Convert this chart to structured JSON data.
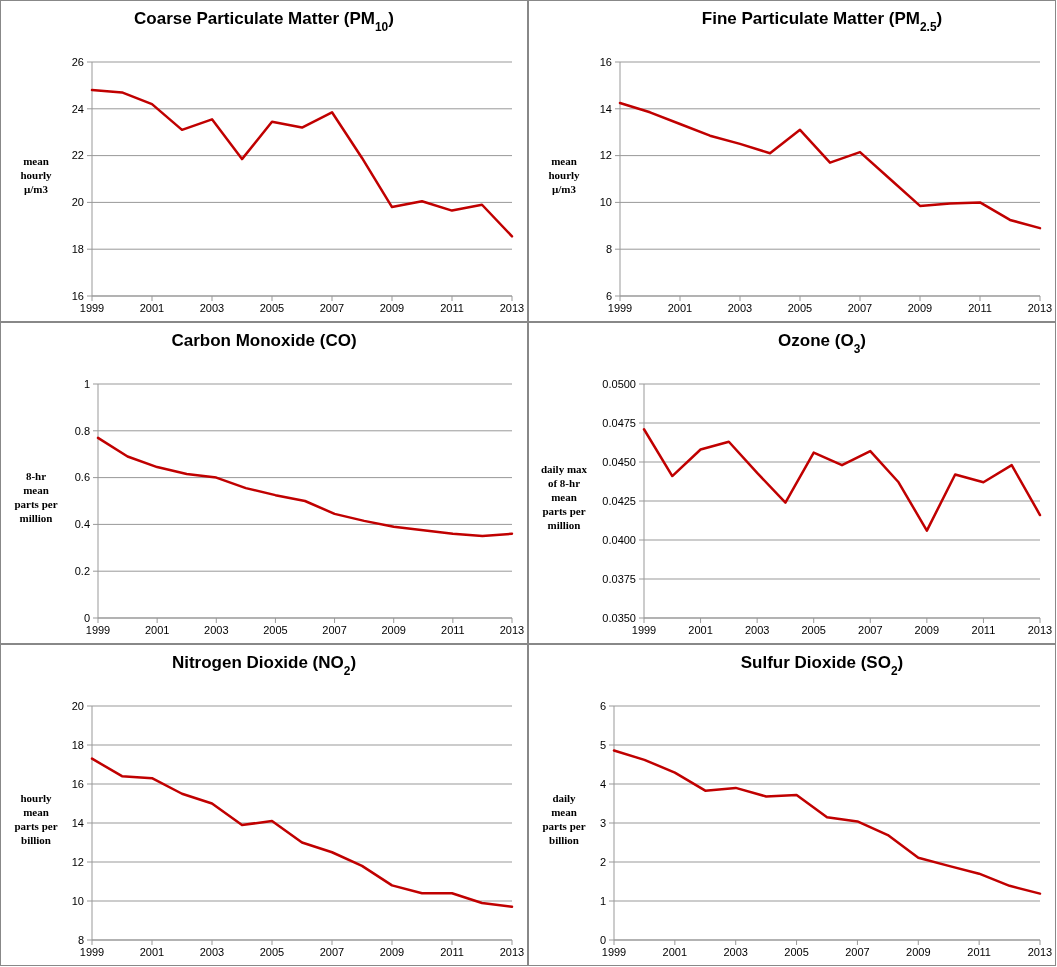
{
  "chart_data": [
    {
      "type": "line",
      "title": "Coarse Particulate Matter (PM$_{10}$)",
      "ylabel": "mean\nhourly\nµ/m3",
      "x": [
        1999,
        2000,
        2001,
        2002,
        2003,
        2004,
        2005,
        2006,
        2007,
        2008,
        2009,
        2010,
        2011,
        2012,
        2013
      ],
      "xlim": [
        1999,
        2013
      ],
      "xticks": [
        1999,
        2001,
        2003,
        2005,
        2007,
        2009,
        2011,
        2013
      ],
      "ylim": [
        16,
        26
      ],
      "yticks": [
        16,
        18,
        20,
        22,
        24,
        26
      ],
      "grid": "y",
      "marker": "none",
      "line_style": "solid",
      "series": [
        {
          "color": "#c00000",
          "values": [
            24.8,
            24.7,
            24.2,
            23.1,
            23.55,
            21.85,
            23.45,
            23.2,
            23.85,
            21.9,
            19.8,
            20.05,
            19.65,
            19.9,
            18.55
          ]
        }
      ]
    },
    {
      "type": "line",
      "title": "Fine Particulate Matter (PM$_{2.5}$)",
      "ylabel": "mean\nhourly\nµ/m3",
      "x": [
        1999,
        2000,
        2001,
        2002,
        2003,
        2004,
        2005,
        2006,
        2007,
        2008,
        2009,
        2010,
        2011,
        2012,
        2013
      ],
      "xlim": [
        1999,
        2013
      ],
      "xticks": [
        1999,
        2001,
        2003,
        2005,
        2007,
        2009,
        2011,
        2013
      ],
      "ylim": [
        6,
        16
      ],
      "yticks": [
        6,
        8,
        10,
        12,
        14,
        16
      ],
      "grid": "y",
      "marker": "none",
      "line_style": "solid",
      "series": [
        {
          "color": "#c00000",
          "values": [
            14.25,
            13.85,
            13.35,
            12.85,
            12.5,
            12.1,
            13.1,
            11.7,
            12.15,
            11.0,
            9.85,
            9.95,
            10.0,
            9.25,
            8.9
          ]
        }
      ]
    },
    {
      "type": "line",
      "title": "Carbon Monoxide (CO)",
      "ylabel": "8-hr\nmean\nparts per\nmillion",
      "x": [
        1999,
        2000,
        2001,
        2002,
        2003,
        2004,
        2005,
        2006,
        2007,
        2008,
        2009,
        2010,
        2011,
        2012,
        2013
      ],
      "xlim": [
        1999,
        2013
      ],
      "xticks": [
        1999,
        2001,
        2003,
        2005,
        2007,
        2009,
        2011,
        2013
      ],
      "ylim": [
        0,
        1
      ],
      "yticks": [
        0,
        0.2,
        0.4,
        0.6,
        0.8,
        1
      ],
      "grid": "y",
      "marker": "none",
      "line_style": "solid",
      "series": [
        {
          "color": "#c00000",
          "values": [
            0.77,
            0.69,
            0.645,
            0.615,
            0.6,
            0.555,
            0.525,
            0.5,
            0.445,
            0.415,
            0.39,
            0.375,
            0.36,
            0.35,
            0.36
          ]
        }
      ]
    },
    {
      "type": "line",
      "title": "Ozone (O$_{3}$)",
      "ylabel": "daily max\nof 8-hr\nmean\nparts per\nmillion",
      "x": [
        1999,
        2000,
        2001,
        2002,
        2003,
        2004,
        2005,
        2006,
        2007,
        2008,
        2009,
        2010,
        2011,
        2012,
        2013
      ],
      "xlim": [
        1999,
        2013
      ],
      "xticks": [
        1999,
        2001,
        2003,
        2005,
        2007,
        2009,
        2011,
        2013
      ],
      "ylim": [
        0.035,
        0.05
      ],
      "yticks": [
        {
          "value": 0.035,
          "label": "0.0350"
        },
        {
          "value": 0.0375,
          "label": "0.0375"
        },
        {
          "value": 0.04,
          "label": "0.0400"
        },
        {
          "value": 0.0425,
          "label": "0.0425"
        },
        {
          "value": 0.045,
          "label": "0.0450"
        },
        {
          "value": 0.0475,
          "label": "0.0475"
        },
        {
          "value": 0.05,
          "label": "0.0500"
        }
      ],
      "grid": "y",
      "marker": "none",
      "line_style": "solid",
      "series": [
        {
          "color": "#c00000",
          "values": [
            0.0471,
            0.0441,
            0.0458,
            0.0463,
            0.0443,
            0.0424,
            0.0456,
            0.0448,
            0.0457,
            0.0437,
            0.0406,
            0.0442,
            0.0437,
            0.0448,
            0.0416
          ]
        }
      ]
    },
    {
      "type": "line",
      "title": "Nitrogen Dioxide (NO$_{2}$)",
      "ylabel": "hourly\nmean\nparts per\nbillion",
      "x": [
        1999,
        2000,
        2001,
        2002,
        2003,
        2004,
        2005,
        2006,
        2007,
        2008,
        2009,
        2010,
        2011,
        2012,
        2013
      ],
      "xlim": [
        1999,
        2013
      ],
      "xticks": [
        1999,
        2001,
        2003,
        2005,
        2007,
        2009,
        2011,
        2013
      ],
      "ylim": [
        8,
        20
      ],
      "yticks": [
        8,
        10,
        12,
        14,
        16,
        18,
        20
      ],
      "grid": "y",
      "marker": "none",
      "line_style": "solid",
      "series": [
        {
          "color": "#c00000",
          "values": [
            17.3,
            16.4,
            16.3,
            15.5,
            15.0,
            13.9,
            14.1,
            13.0,
            12.5,
            11.8,
            10.8,
            10.4,
            10.4,
            9.9,
            9.7
          ]
        }
      ]
    },
    {
      "type": "line",
      "title": "Sulfur Dioxide (SO$_{2}$)",
      "ylabel": "daily\nmean\nparts per\nbillion",
      "x": [
        1999,
        2000,
        2001,
        2002,
        2003,
        2004,
        2005,
        2006,
        2007,
        2008,
        2009,
        2010,
        2011,
        2012,
        2013
      ],
      "xlim": [
        1999,
        2013
      ],
      "xticks": [
        1999,
        2001,
        2003,
        2005,
        2007,
        2009,
        2011,
        2013
      ],
      "ylim": [
        0,
        6
      ],
      "yticks": [
        0,
        1,
        2,
        3,
        4,
        5,
        6
      ],
      "grid": "y",
      "marker": "none",
      "line_style": "solid",
      "series": [
        {
          "color": "#c00000",
          "values": [
            4.86,
            4.62,
            4.29,
            3.83,
            3.9,
            3.68,
            3.72,
            3.15,
            3.04,
            2.69,
            2.11,
            1.9,
            1.7,
            1.39,
            1.19
          ]
        }
      ]
    }
  ]
}
